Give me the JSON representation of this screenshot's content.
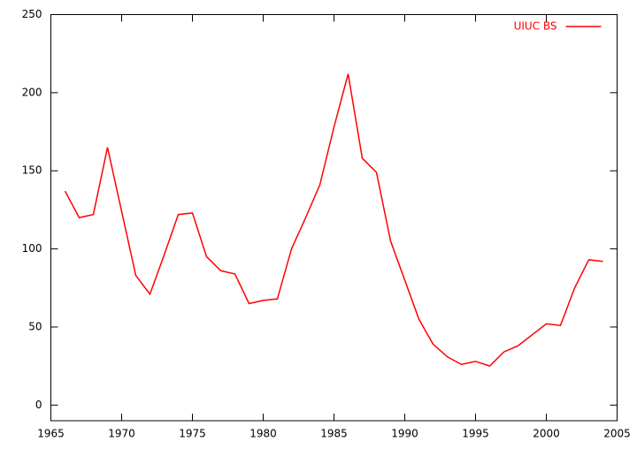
{
  "chart_data": {
    "type": "line",
    "x": [
      1966,
      1967,
      1968,
      1969,
      1970,
      1971,
      1972,
      1973,
      1974,
      1975,
      1976,
      1977,
      1978,
      1979,
      1980,
      1981,
      1982,
      1983,
      1984,
      1985,
      1986,
      1987,
      1988,
      1989,
      1990,
      1991,
      1992,
      1993,
      1994,
      1995,
      1996,
      1997,
      1998,
      1999,
      2000,
      2001,
      2002,
      2003,
      2004
    ],
    "series": [
      {
        "name": "UIUC BS",
        "color": "#ff0000",
        "values": [
          137,
          120,
          122,
          165,
          124,
          83,
          71,
          96,
          122,
          123,
          95,
          86,
          84,
          65,
          67,
          68,
          100,
          120,
          141,
          178,
          212,
          158,
          149,
          105,
          80,
          55,
          39,
          31,
          26,
          28,
          25,
          34,
          38,
          45,
          52,
          51,
          75,
          93,
          92
        ]
      }
    ],
    "xlim": [
      1965,
      2005
    ],
    "xticks": [
      1965,
      1970,
      1975,
      1980,
      1985,
      1990,
      1995,
      2000,
      2005
    ],
    "ylim": [
      -10,
      250
    ],
    "yticks": [
      0,
      50,
      100,
      150,
      200,
      250
    ],
    "legend": "top-right"
  }
}
